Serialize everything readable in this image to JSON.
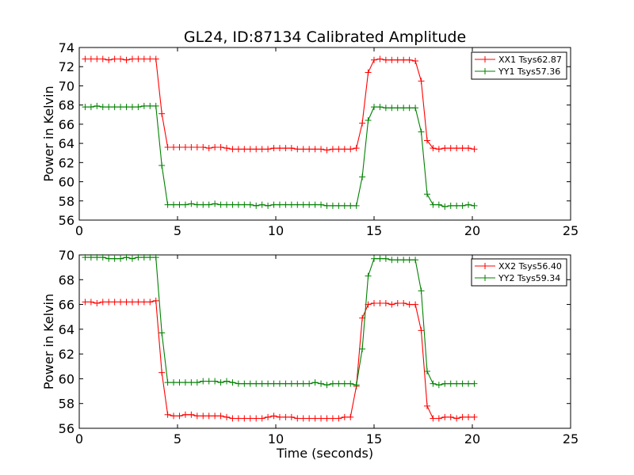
{
  "figure": {
    "title": "GL24, ID:87134 Calibrated Amplitude"
  },
  "chart_data": [
    {
      "type": "line",
      "title": "GL24, ID:87134 Calibrated Amplitude",
      "xlabel": "",
      "ylabel": "Power in Kelvin",
      "xlim": [
        0,
        25
      ],
      "ylim": [
        56,
        74
      ],
      "xticks": [
        "0",
        "5",
        "10",
        "15",
        "20",
        "25"
      ],
      "yticks": [
        "56",
        "58",
        "60",
        "62",
        "64",
        "66",
        "68",
        "70",
        "72",
        "74"
      ],
      "grid": false,
      "legend": "top-right",
      "x": [
        0.3,
        0.6,
        0.9,
        1.2,
        1.5,
        1.8,
        2.1,
        2.4,
        2.7,
        3.0,
        3.3,
        3.6,
        3.9,
        4.2,
        4.5,
        4.8,
        5.1,
        5.4,
        5.7,
        6.0,
        6.3,
        6.6,
        6.9,
        7.2,
        7.5,
        7.8,
        8.1,
        8.4,
        8.7,
        9.0,
        9.3,
        9.6,
        9.9,
        10.2,
        10.5,
        10.8,
        11.1,
        11.4,
        11.7,
        12.0,
        12.3,
        12.6,
        12.9,
        13.2,
        13.5,
        13.8,
        14.1,
        14.4,
        14.7,
        15.0,
        15.3,
        15.6,
        15.9,
        16.2,
        16.5,
        16.8,
        17.1,
        17.4,
        17.7,
        18.0,
        18.3,
        18.6,
        18.9,
        19.2,
        19.5,
        19.8,
        20.1
      ],
      "series": [
        {
          "name": "XX1 Tsys62.87",
          "color": "#ff0000",
          "values": [
            72.8,
            72.8,
            72.8,
            72.8,
            72.7,
            72.8,
            72.8,
            72.7,
            72.8,
            72.8,
            72.8,
            72.8,
            72.8,
            67.1,
            63.6,
            63.6,
            63.6,
            63.6,
            63.6,
            63.6,
            63.6,
            63.5,
            63.6,
            63.6,
            63.5,
            63.4,
            63.4,
            63.4,
            63.4,
            63.4,
            63.4,
            63.4,
            63.5,
            63.5,
            63.5,
            63.5,
            63.4,
            63.4,
            63.4,
            63.4,
            63.4,
            63.3,
            63.4,
            63.4,
            63.4,
            63.4,
            63.5,
            66.1,
            71.4,
            72.7,
            72.8,
            72.7,
            72.7,
            72.7,
            72.7,
            72.7,
            72.6,
            70.5,
            64.3,
            63.5,
            63.4,
            63.5,
            63.5,
            63.5,
            63.5,
            63.5,
            63.4
          ]
        },
        {
          "name": "YY1 Tsys57.36",
          "color": "#008000",
          "values": [
            67.8,
            67.8,
            67.9,
            67.8,
            67.8,
            67.8,
            67.8,
            67.8,
            67.8,
            67.8,
            67.9,
            67.9,
            67.9,
            61.7,
            57.6,
            57.6,
            57.6,
            57.6,
            57.7,
            57.6,
            57.6,
            57.6,
            57.7,
            57.6,
            57.6,
            57.6,
            57.6,
            57.6,
            57.6,
            57.5,
            57.6,
            57.5,
            57.6,
            57.6,
            57.6,
            57.6,
            57.6,
            57.6,
            57.6,
            57.6,
            57.6,
            57.5,
            57.5,
            57.5,
            57.5,
            57.5,
            57.5,
            60.5,
            66.4,
            67.8,
            67.8,
            67.7,
            67.7,
            67.7,
            67.7,
            67.7,
            67.7,
            65.2,
            58.7,
            57.6,
            57.6,
            57.4,
            57.5,
            57.5,
            57.5,
            57.6,
            57.5
          ]
        }
      ]
    },
    {
      "type": "line",
      "title": "",
      "xlabel": "Time (seconds)",
      "ylabel": "Power in Kelvin",
      "xlim": [
        0,
        25
      ],
      "ylim": [
        56,
        70
      ],
      "xticks": [
        "0",
        "5",
        "10",
        "15",
        "20",
        "25"
      ],
      "yticks": [
        "56",
        "58",
        "60",
        "62",
        "64",
        "66",
        "68",
        "70"
      ],
      "grid": false,
      "legend": "top-right",
      "x": [
        0.3,
        0.6,
        0.9,
        1.2,
        1.5,
        1.8,
        2.1,
        2.4,
        2.7,
        3.0,
        3.3,
        3.6,
        3.9,
        4.2,
        4.5,
        4.8,
        5.1,
        5.4,
        5.7,
        6.0,
        6.3,
        6.6,
        6.9,
        7.2,
        7.5,
        7.8,
        8.1,
        8.4,
        8.7,
        9.0,
        9.3,
        9.6,
        9.9,
        10.2,
        10.5,
        10.8,
        11.1,
        11.4,
        11.7,
        12.0,
        12.3,
        12.6,
        12.9,
        13.2,
        13.5,
        13.8,
        14.1,
        14.4,
        14.7,
        15.0,
        15.3,
        15.6,
        15.9,
        16.2,
        16.5,
        16.8,
        17.1,
        17.4,
        17.7,
        18.0,
        18.3,
        18.6,
        18.9,
        19.2,
        19.5,
        19.8,
        20.1
      ],
      "series": [
        {
          "name": "XX2 Tsys56.40",
          "color": "#ff0000",
          "values": [
            66.2,
            66.2,
            66.1,
            66.2,
            66.2,
            66.2,
            66.2,
            66.2,
            66.2,
            66.2,
            66.2,
            66.2,
            66.3,
            60.5,
            57.1,
            57.0,
            57.0,
            57.1,
            57.1,
            57.0,
            57.0,
            57.0,
            57.0,
            57.0,
            56.9,
            56.8,
            56.8,
            56.8,
            56.8,
            56.8,
            56.8,
            56.9,
            57.0,
            56.9,
            56.9,
            56.9,
            56.8,
            56.8,
            56.8,
            56.8,
            56.8,
            56.8,
            56.8,
            56.8,
            56.9,
            56.9,
            59.4,
            64.9,
            66.0,
            66.1,
            66.1,
            66.1,
            66.0,
            66.1,
            66.1,
            66.0,
            66.0,
            63.9,
            57.8,
            56.8,
            56.8,
            56.9,
            56.9,
            56.8,
            56.9,
            56.9,
            56.9
          ]
        },
        {
          "name": "YY2 Tsys59.34",
          "color": "#008000",
          "values": [
            69.8,
            69.8,
            69.8,
            69.8,
            69.7,
            69.7,
            69.7,
            69.8,
            69.7,
            69.8,
            69.8,
            69.8,
            69.8,
            63.7,
            59.7,
            59.7,
            59.7,
            59.7,
            59.7,
            59.7,
            59.8,
            59.8,
            59.8,
            59.7,
            59.8,
            59.7,
            59.6,
            59.6,
            59.6,
            59.6,
            59.6,
            59.6,
            59.6,
            59.6,
            59.6,
            59.6,
            59.6,
            59.6,
            59.6,
            59.7,
            59.6,
            59.5,
            59.6,
            59.6,
            59.6,
            59.6,
            59.5,
            62.4,
            68.3,
            69.7,
            69.7,
            69.7,
            69.6,
            69.6,
            69.6,
            69.6,
            69.6,
            67.1,
            60.6,
            59.6,
            59.5,
            59.6,
            59.6,
            59.6,
            59.6,
            59.6,
            59.6
          ]
        }
      ]
    }
  ]
}
